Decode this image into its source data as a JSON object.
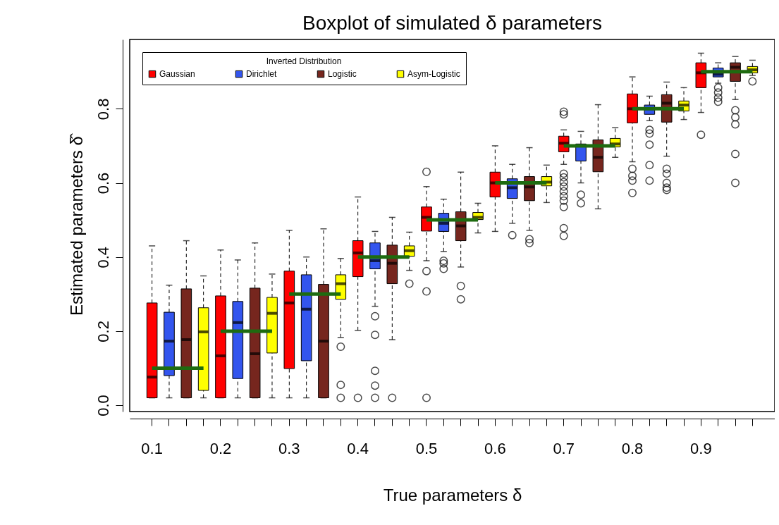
{
  "chart_data": {
    "type": "box",
    "title": "Boxplot of simulated δ parameters",
    "xlabel": "True parameters δ",
    "ylabel": "Estimated parameters δ̂",
    "legend_title": "Inverted Distribution",
    "legend": "top left",
    "grid": false,
    "categories": [
      "0.1",
      null,
      null,
      null,
      "0.2",
      null,
      null,
      null,
      "0.3",
      null,
      null,
      null,
      "0.4",
      null,
      null,
      null,
      "0.5",
      null,
      null,
      null,
      "0.6",
      null,
      null,
      null,
      "0.7",
      null,
      null,
      null,
      "0.8",
      null,
      null,
      null,
      "0.9",
      null,
      null,
      null
    ],
    "ylim": [
      -0.017,
      0.987
    ],
    "yticks": [
      {
        "value": 0,
        "label": "0.0"
      },
      0.2,
      0.4,
      0.6,
      0.8
    ],
    "series": [
      {
        "name": "Gaussian",
        "type": "box",
        "line_style": "dashed",
        "color": "#ff0000",
        "boxes": [
          {
            "low": 0.02,
            "q1": 0.02,
            "median": 0.076,
            "q3": 0.276,
            "high": 0.43
          },
          null,
          null,
          null,
          {
            "low": 0.02,
            "q1": 0.02,
            "median": 0.133,
            "q3": 0.295,
            "high": 0.419
          },
          null,
          null,
          null,
          {
            "low": 0.02,
            "q1": 0.099,
            "median": 0.276,
            "q3": 0.362,
            "high": 0.472
          },
          null,
          null,
          null,
          {
            "low": 0.202,
            "q1": 0.347,
            "median": 0.411,
            "q3": 0.444,
            "high": 0.562,
            "outliers": [
              0.02
            ]
          },
          null,
          null,
          null,
          {
            "low": 0.39,
            "q1": 0.47,
            "median": 0.507,
            "q3": 0.535,
            "high": 0.59,
            "outliers": [
              0.63,
              0.362,
              0.307,
              0.02
            ]
          },
          null,
          null,
          null,
          {
            "low": 0.469,
            "q1": 0.562,
            "median": 0.6,
            "q3": 0.629,
            "high": 0.7
          },
          null,
          null,
          null,
          {
            "low": 0.65,
            "q1": 0.684,
            "median": 0.707,
            "q3": 0.726,
            "high": 0.743,
            "outliers": [
              0.792,
              0.785,
              0.625,
              0.615,
              0.602,
              0.59,
              0.577,
              0.564,
              0.552,
              0.535,
              0.478,
              0.457
            ]
          },
          null,
          null,
          null,
          {
            "low": 0.657,
            "q1": 0.762,
            "median": 0.8,
            "q3": 0.84,
            "high": 0.886,
            "outliers": [
              0.638,
              0.619,
              0.606,
              0.573
            ]
          },
          null,
          null,
          null,
          {
            "low": 0.79,
            "q1": 0.857,
            "median": 0.897,
            "q3": 0.924,
            "high": 0.95,
            "outliers": [
              0.73
            ]
          },
          null,
          null,
          null
        ]
      },
      {
        "name": "Dirichlet",
        "type": "box",
        "line_style": "dashed",
        "color": "#3355ee",
        "boxes": [
          null,
          {
            "low": 0.02,
            "q1": 0.08,
            "median": 0.173,
            "q3": 0.251,
            "high": 0.324
          },
          null,
          null,
          null,
          {
            "low": 0.02,
            "q1": 0.072,
            "median": 0.223,
            "q3": 0.28,
            "high": 0.392
          },
          null,
          null,
          null,
          {
            "low": 0.02,
            "q1": 0.12,
            "median": 0.259,
            "q3": 0.352,
            "high": 0.4
          },
          null,
          null,
          null,
          {
            "low": 0.267,
            "q1": 0.368,
            "median": 0.39,
            "q3": 0.438,
            "high": 0.469,
            "outliers": [
              0.24,
              0.19,
              0.093,
              0.053,
              0.02
            ]
          },
          null,
          null,
          null,
          {
            "low": 0.415,
            "q1": 0.469,
            "median": 0.491,
            "q3": 0.518,
            "high": 0.556,
            "outliers": [
              0.39,
              0.383,
              0.368
            ]
          },
          null,
          null,
          null,
          {
            "low": 0.491,
            "q1": 0.558,
            "median": 0.587,
            "q3": 0.611,
            "high": 0.65,
            "outliers": [
              0.459
            ]
          },
          null,
          null,
          null,
          {
            "low": 0.6,
            "q1": 0.659,
            "median": 0.7,
            "q3": 0.705,
            "high": 0.739,
            "outliers": [
              0.568,
              0.545
            ]
          },
          null,
          null,
          null,
          {
            "low": 0.768,
            "q1": 0.785,
            "median": 0.8,
            "q3": 0.81,
            "high": 0.834,
            "outliers": [
              0.743,
              0.733,
              0.703,
              0.648,
              0.606
            ]
          },
          null,
          null,
          null,
          {
            "low": 0.869,
            "q1": 0.886,
            "median": 0.893,
            "q3": 0.91,
            "high": 0.924,
            "outliers": [
              0.857,
              0.844,
              0.83,
              0.819
            ]
          },
          null,
          null
        ]
      },
      {
        "name": "Logistic",
        "type": "box",
        "line_style": "dashed",
        "color": "#76261e",
        "boxes": [
          null,
          null,
          {
            "low": 0.02,
            "q1": 0.02,
            "median": 0.177,
            "q3": 0.314,
            "high": 0.444
          },
          null,
          null,
          null,
          {
            "low": 0.02,
            "q1": 0.02,
            "median": 0.139,
            "q3": 0.316,
            "high": 0.438
          },
          null,
          null,
          null,
          {
            "low": 0.02,
            "q1": 0.02,
            "median": 0.173,
            "q3": 0.326,
            "high": 0.476
          },
          null,
          null,
          null,
          {
            "low": 0.177,
            "q1": 0.328,
            "median": 0.383,
            "q3": 0.432,
            "high": 0.507,
            "outliers": [
              0.02
            ]
          },
          null,
          null,
          null,
          {
            "low": 0.373,
            "q1": 0.444,
            "median": 0.484,
            "q3": 0.522,
            "high": 0.629,
            "outliers": [
              0.322,
              0.286
            ]
          },
          null,
          null,
          null,
          {
            "low": 0.472,
            "q1": 0.552,
            "median": 0.589,
            "q3": 0.617,
            "high": 0.695,
            "outliers": [
              0.448,
              0.438
            ]
          },
          null,
          null,
          null,
          {
            "low": 0.53,
            "q1": 0.63,
            "median": 0.669,
            "q3": 0.716,
            "high": 0.811
          },
          null,
          null,
          null,
          {
            "low": 0.672,
            "q1": 0.764,
            "median": 0.815,
            "q3": 0.838,
            "high": 0.872,
            "outliers": [
              0.638,
              0.625,
              0.6,
              0.587,
              0.581
            ]
          },
          null,
          null,
          null,
          {
            "low": 0.825,
            "q1": 0.874,
            "median": 0.912,
            "q3": 0.924,
            "high": 0.941,
            "outliers": [
              0.796,
              0.777,
              0.758,
              0.678,
              0.6
            ]
          },
          null
        ]
      },
      {
        "name": "Asym-Logistic",
        "type": "box",
        "line_style": "dashed",
        "color": "#ffff00",
        "boxes": [
          null,
          null,
          null,
          {
            "low": 0.02,
            "q1": 0.04,
            "median": 0.198,
            "q3": 0.263,
            "high": 0.349
          },
          null,
          null,
          null,
          {
            "low": 0.02,
            "q1": 0.141,
            "median": 0.248,
            "q3": 0.291,
            "high": 0.354
          },
          null,
          null,
          null,
          {
            "low": 0.183,
            "q1": 0.286,
            "median": 0.328,
            "q3": 0.352,
            "high": 0.396,
            "outliers": [
              0.158,
              0.055,
              0.02
            ]
          },
          null,
          null,
          null,
          {
            "low": 0.364,
            "q1": 0.402,
            "median": 0.417,
            "q3": 0.43,
            "high": 0.467,
            "outliers": [
              0.328
            ]
          },
          null,
          null,
          null,
          {
            "low": 0.465,
            "q1": 0.501,
            "median": 0.507,
            "q3": 0.52,
            "high": 0.545
          },
          null,
          null,
          null,
          {
            "low": 0.547,
            "q1": 0.592,
            "median": 0.602,
            "q3": 0.617,
            "high": 0.648
          },
          null,
          null,
          null,
          {
            "low": 0.669,
            "q1": 0.697,
            "median": 0.705,
            "q3": 0.72,
            "high": 0.749
          },
          null,
          null,
          null,
          {
            "low": 0.771,
            "q1": 0.794,
            "median": 0.81,
            "q3": 0.821,
            "high": 0.857
          },
          null,
          null,
          null,
          {
            "low": 0.89,
            "q1": 0.897,
            "median": 0.905,
            "q3": 0.914,
            "high": 0.931,
            "outliers": [
              0.874
            ]
          }
        ]
      },
      {
        "type": "line",
        "color": "#1e6b10",
        "values": [
          0.1,
          0.1,
          0.1,
          0.1,
          null,
          null,
          null,
          null,
          null,
          null,
          null,
          null,
          null,
          null,
          null,
          null,
          null,
          null,
          null,
          null,
          null,
          null,
          null,
          null,
          null,
          null,
          null,
          null,
          null,
          null,
          null,
          null,
          null,
          null,
          null,
          null
        ]
      },
      {
        "type": "line",
        "color": "#1e6b10",
        "values": [
          null,
          null,
          null,
          null,
          0.2,
          0.2,
          0.2,
          0.2,
          null,
          null,
          null,
          null,
          null,
          null,
          null,
          null,
          null,
          null,
          null,
          null,
          null,
          null,
          null,
          null,
          null,
          null,
          null,
          null,
          null,
          null,
          null,
          null,
          null,
          null,
          null,
          null
        ]
      },
      {
        "type": "line",
        "color": "#1e6b10",
        "values": [
          null,
          null,
          null,
          null,
          null,
          null,
          null,
          null,
          0.3,
          0.3,
          0.3,
          0.3,
          null,
          null,
          null,
          null,
          null,
          null,
          null,
          null,
          null,
          null,
          null,
          null,
          null,
          null,
          null,
          null,
          null,
          null,
          null,
          null,
          null,
          null,
          null,
          null
        ]
      },
      {
        "type": "line",
        "color": "#1e6b10",
        "values": [
          null,
          null,
          null,
          null,
          null,
          null,
          null,
          null,
          null,
          null,
          null,
          null,
          0.4,
          0.4,
          0.4,
          0.4,
          null,
          null,
          null,
          null,
          null,
          null,
          null,
          null,
          null,
          null,
          null,
          null,
          null,
          null,
          null,
          null,
          null,
          null,
          null,
          null
        ]
      },
      {
        "type": "line",
        "color": "#1e6b10",
        "values": [
          null,
          null,
          null,
          null,
          null,
          null,
          null,
          null,
          null,
          null,
          null,
          null,
          null,
          null,
          null,
          null,
          0.5,
          0.5,
          0.5,
          0.5,
          null,
          null,
          null,
          null,
          null,
          null,
          null,
          null,
          null,
          null,
          null,
          null,
          null,
          null,
          null,
          null
        ]
      },
      {
        "type": "line",
        "color": "#1e6b10",
        "values": [
          null,
          null,
          null,
          null,
          null,
          null,
          null,
          null,
          null,
          null,
          null,
          null,
          null,
          null,
          null,
          null,
          null,
          null,
          null,
          null,
          0.6,
          0.6,
          0.6,
          0.6,
          null,
          null,
          null,
          null,
          null,
          null,
          null,
          null,
          null,
          null,
          null,
          null
        ]
      },
      {
        "type": "line",
        "color": "#1e6b10",
        "values": [
          null,
          null,
          null,
          null,
          null,
          null,
          null,
          null,
          null,
          null,
          null,
          null,
          null,
          null,
          null,
          null,
          null,
          null,
          null,
          null,
          null,
          null,
          null,
          null,
          0.7,
          0.7,
          0.7,
          0.7,
          null,
          null,
          null,
          null,
          null,
          null,
          null,
          null
        ]
      },
      {
        "type": "line",
        "color": "#1e6b10",
        "values": [
          null,
          null,
          null,
          null,
          null,
          null,
          null,
          null,
          null,
          null,
          null,
          null,
          null,
          null,
          null,
          null,
          null,
          null,
          null,
          null,
          null,
          null,
          null,
          null,
          null,
          null,
          null,
          null,
          0.8,
          0.8,
          0.8,
          0.8,
          null,
          null,
          null,
          null
        ]
      },
      {
        "type": "line",
        "color": "#1e6b10",
        "values": [
          null,
          null,
          null,
          null,
          null,
          null,
          null,
          null,
          null,
          null,
          null,
          null,
          null,
          null,
          null,
          null,
          null,
          null,
          null,
          null,
          null,
          null,
          null,
          null,
          null,
          null,
          null,
          null,
          null,
          null,
          null,
          null,
          0.9,
          0.9,
          0.9,
          0.9
        ]
      }
    ]
  }
}
